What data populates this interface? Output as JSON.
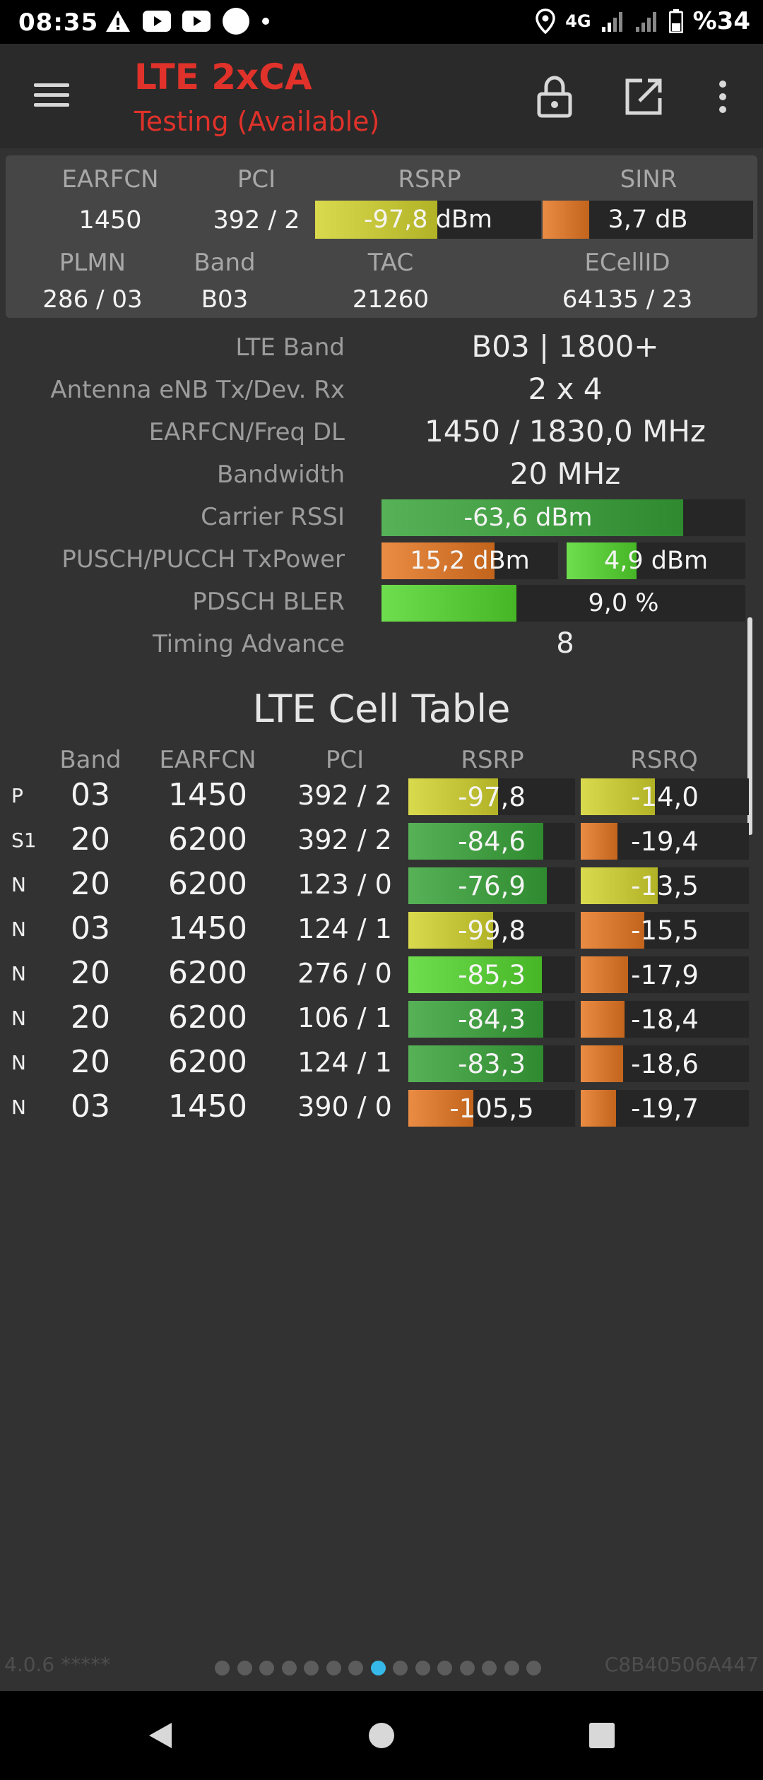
{
  "status_bar": {
    "time": "08:35",
    "network": "4G",
    "battery": "%34",
    "icons_left": [
      "warning-icon",
      "youtube-icon",
      "youtube-icon",
      "circle-icon",
      "dot-icon"
    ],
    "icons_right": [
      "location-icon",
      "signal-icon",
      "signal-icon",
      "battery-icon"
    ]
  },
  "toolbar": {
    "title": "LTE 2xCA",
    "subtitle": "Testing (Available)",
    "title_color": "#e0322a",
    "menu_icon": "hamburger-menu-icon",
    "lock_icon": "lock-icon",
    "open_icon": "open-external-icon",
    "more_icon": "more-vert-icon"
  },
  "summary": {
    "labels": {
      "earfcn": "EARFCN",
      "pci": "PCI",
      "rsrp": "RSRP",
      "sinr": "SINR",
      "plmn": "PLMN",
      "band": "Band",
      "tac": "TAC",
      "ecellid": "ECellID"
    },
    "earfcn": "1450",
    "pci": "392 / 2",
    "rsrp": {
      "text": "-97,8 dBm",
      "level": 0.54,
      "color": "yellow"
    },
    "sinr": {
      "text": "3,7 dB",
      "level": 0.22,
      "color": "orange"
    },
    "plmn": "286 / 03",
    "band": "B03",
    "tac": "21260",
    "ecellid": "64135 / 23"
  },
  "details": {
    "lte_band": {
      "label": "LTE Band",
      "value": "B03 | 1800+"
    },
    "antenna": {
      "label": "Antenna eNB Tx/Dev. Rx",
      "value": "2 x 4"
    },
    "earfcn_freq": {
      "label": "EARFCN/Freq DL",
      "value": "1450 / 1830,0 MHz"
    },
    "bandwidth": {
      "label": "Bandwidth",
      "value": "20 MHz"
    },
    "carrier_rssi": {
      "label": "Carrier RSSI",
      "text": "-63,6 dBm",
      "level": 0.83,
      "color": "green"
    },
    "tx_power": {
      "label": "PUSCH/PUCCH TxPower",
      "pusch_text": "15,2 dBm",
      "pusch_level": 0.64,
      "pusch_color": "orange",
      "pucch_text": "4,9 dBm",
      "pucch_level": 0.39,
      "pucch_color": "brightgreen"
    },
    "pdsch_bler": {
      "label": "PDSCH BLER",
      "text": "9,0 %",
      "level": 0.37,
      "color": "brightgreen"
    },
    "timing_advance": {
      "label": "Timing Advance",
      "value": "8"
    }
  },
  "cell_table": {
    "title": "LTE Cell Table",
    "headers": [
      "Band",
      "EARFCN",
      "PCI",
      "RSRP",
      "RSRQ"
    ],
    "rows": [
      {
        "type": "P",
        "band": "03",
        "earfcn": "1450",
        "pci": "392 / 2",
        "rsrp": "-97,8",
        "rsrp_level": 0.54,
        "rsrp_color": "yellow",
        "rsrq": "-14,0",
        "rsrq_level": 0.44,
        "rsrq_color": "yellow"
      },
      {
        "type": "S1",
        "band": "20",
        "earfcn": "6200",
        "pci": "392 / 2",
        "rsrp": "-84,6",
        "rsrp_level": 0.81,
        "rsrp_color": "green",
        "rsrq": "-19,4",
        "rsrq_level": 0.22,
        "rsrq_color": "orange"
      },
      {
        "type": "N",
        "band": "20",
        "earfcn": "6200",
        "pci": "123 / 0",
        "rsrp": "-76,9",
        "rsrp_level": 0.83,
        "rsrp_color": "green",
        "rsrq": "-13,5",
        "rsrq_level": 0.46,
        "rsrq_color": "yellow"
      },
      {
        "type": "N",
        "band": "03",
        "earfcn": "1450",
        "pci": "124 / 1",
        "rsrp": "-99,8",
        "rsrp_level": 0.51,
        "rsrp_color": "yellow",
        "rsrq": "-15,5",
        "rsrq_level": 0.38,
        "rsrq_color": "orange"
      },
      {
        "type": "N",
        "band": "20",
        "earfcn": "6200",
        "pci": "276 / 0",
        "rsrp": "-85,3",
        "rsrp_level": 0.8,
        "rsrp_color": "brightgreen",
        "rsrq": "-17,9",
        "rsrq_level": 0.28,
        "rsrq_color": "orange"
      },
      {
        "type": "N",
        "band": "20",
        "earfcn": "6200",
        "pci": "106 / 1",
        "rsrp": "-84,3",
        "rsrp_level": 0.81,
        "rsrp_color": "green",
        "rsrq": "-18,4",
        "rsrq_level": 0.26,
        "rsrq_color": "orange"
      },
      {
        "type": "N",
        "band": "20",
        "earfcn": "6200",
        "pci": "124 / 1",
        "rsrp": "-83,3",
        "rsrp_level": 0.81,
        "rsrp_color": "green",
        "rsrq": "-18,6",
        "rsrq_level": 0.25,
        "rsrq_color": "orange"
      },
      {
        "type": "N",
        "band": "03",
        "earfcn": "1450",
        "pci": "390 / 0",
        "rsrp": "-105,5",
        "rsrp_level": 0.39,
        "rsrp_color": "orange",
        "rsrq": "-19,7",
        "rsrq_level": 0.21,
        "rsrq_color": "orange"
      }
    ]
  },
  "footer": {
    "version": "4.0.6 *****",
    "device_id": "C8B40506A447",
    "page_count": 15,
    "active_page": 7
  },
  "colors": {
    "yellow": "#c8c83c",
    "orange": "#d87a32",
    "green": "#45a045",
    "brightgreen": "#5ccc3c",
    "accent": "#36b9e8"
  },
  "nav_bar": {
    "back_icon": "back-triangle-icon",
    "home_icon": "home-circle-icon",
    "recents_icon": "recents-square-icon"
  }
}
